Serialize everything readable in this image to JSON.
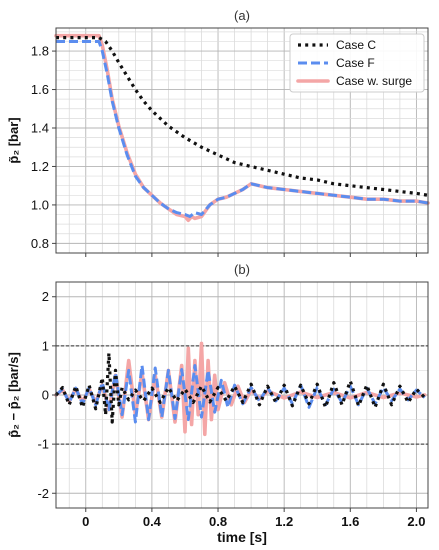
{
  "chart_data": [
    {
      "type": "line",
      "title": "(a)",
      "ylabel": "p̃₂ [bar]",
      "xlim": [
        -0.18,
        2.07
      ],
      "ylim": [
        0.75,
        1.92
      ],
      "grid": true,
      "legend_position": "top-right",
      "x_ticks": [
        0,
        0.4,
        0.8,
        1.2,
        1.6,
        2.0
      ],
      "y_ticks": [
        0.8,
        1.0,
        1.2,
        1.4,
        1.6,
        1.8
      ],
      "y_tick_labels": [
        "0.8",
        "1.0",
        "1.2",
        "1.4",
        "1.6",
        "1.8"
      ],
      "series": [
        {
          "name": "Case C",
          "color": "#111111",
          "style": "dotted",
          "x": [
            -0.18,
            0.08,
            0.12,
            0.16,
            0.2,
            0.25,
            0.3,
            0.35,
            0.4,
            0.45,
            0.5,
            0.6,
            0.7,
            0.8,
            0.9,
            1.0,
            1.1,
            1.2,
            1.3,
            1.4,
            1.5,
            1.6,
            1.7,
            1.8,
            1.9,
            2.0,
            2.07
          ],
          "y": [
            1.87,
            1.87,
            1.85,
            1.8,
            1.74,
            1.67,
            1.6,
            1.54,
            1.49,
            1.45,
            1.41,
            1.35,
            1.3,
            1.26,
            1.22,
            1.2,
            1.18,
            1.16,
            1.14,
            1.13,
            1.11,
            1.1,
            1.09,
            1.08,
            1.07,
            1.06,
            1.05
          ]
        },
        {
          "name": "Case F",
          "color": "#5b8def",
          "style": "dashed",
          "x": [
            -0.18,
            0.08,
            0.1,
            0.13,
            0.16,
            0.2,
            0.25,
            0.3,
            0.35,
            0.4,
            0.45,
            0.5,
            0.55,
            0.6,
            0.63,
            0.66,
            0.7,
            0.75,
            0.8,
            0.85,
            0.9,
            0.95,
            1.0,
            1.05,
            1.1,
            1.2,
            1.3,
            1.4,
            1.5,
            1.6,
            1.7,
            1.8,
            1.9,
            2.0,
            2.07
          ],
          "y": [
            1.85,
            1.85,
            1.8,
            1.68,
            1.54,
            1.4,
            1.26,
            1.15,
            1.09,
            1.05,
            1.01,
            0.98,
            0.96,
            0.95,
            0.94,
            0.96,
            0.95,
            1.0,
            1.03,
            1.04,
            1.06,
            1.08,
            1.11,
            1.1,
            1.09,
            1.08,
            1.07,
            1.06,
            1.05,
            1.04,
            1.03,
            1.03,
            1.02,
            1.02,
            1.01
          ]
        },
        {
          "name": "Case w. surge",
          "color": "#f4a6a6",
          "style": "solid",
          "x": [
            -0.18,
            0.08,
            0.1,
            0.13,
            0.16,
            0.2,
            0.25,
            0.3,
            0.35,
            0.4,
            0.45,
            0.5,
            0.55,
            0.6,
            0.62,
            0.64,
            0.66,
            0.7,
            0.75,
            0.8,
            0.85,
            0.9,
            0.95,
            1.0,
            1.05,
            1.1,
            1.2,
            1.3,
            1.4,
            1.5,
            1.6,
            1.7,
            1.8,
            1.9,
            2.0,
            2.07
          ],
          "y": [
            1.88,
            1.88,
            1.83,
            1.7,
            1.55,
            1.41,
            1.27,
            1.16,
            1.09,
            1.05,
            1.01,
            0.98,
            0.95,
            0.94,
            0.92,
            0.94,
            0.93,
            0.94,
            1.0,
            1.03,
            1.04,
            1.06,
            1.08,
            1.11,
            1.1,
            1.09,
            1.08,
            1.07,
            1.06,
            1.05,
            1.04,
            1.03,
            1.03,
            1.02,
            1.02,
            1.01
          ]
        }
      ]
    },
    {
      "type": "line",
      "title": "(b)",
      "xlabel": "time [s]",
      "ylabel": "ṗ̃₂ − ṗ̄₂ [bar/s]",
      "xlim": [
        -0.18,
        2.07
      ],
      "ylim": [
        -2.3,
        2.3
      ],
      "grid": true,
      "reference_lines": [
        1,
        -1
      ],
      "x_ticks": [
        0,
        0.4,
        0.8,
        1.2,
        1.6,
        2.0
      ],
      "x_tick_labels": [
        "0",
        "0.4",
        "0.8",
        "1.2",
        "1.6",
        "2.0"
      ],
      "y_ticks": [
        -2,
        -1,
        0,
        1,
        2
      ],
      "y_tick_labels": [
        "-2",
        "-1",
        "0",
        "1",
        "2"
      ],
      "series": [
        {
          "name": "Case C",
          "color": "#111111",
          "style": "dotted",
          "x": [
            -0.18,
            -0.14,
            -0.1,
            -0.06,
            -0.02,
            0.02,
            0.06,
            0.1,
            0.12,
            0.14,
            0.16,
            0.18,
            0.2,
            0.22,
            0.26,
            0.3,
            0.35,
            0.4,
            0.45,
            0.5,
            0.55,
            0.6,
            0.65,
            0.7,
            0.75,
            0.8,
            0.85,
            0.9,
            0.95,
            1.0,
            1.05,
            1.1,
            1.15,
            1.2,
            1.25,
            1.3,
            1.35,
            1.4,
            1.45,
            1.5,
            1.55,
            1.6,
            1.65,
            1.7,
            1.75,
            1.8,
            1.85,
            1.9,
            1.95,
            2.0,
            2.05
          ],
          "y": [
            0,
            0.15,
            -0.2,
            0.18,
            -0.25,
            0.2,
            -0.28,
            0.35,
            -0.4,
            0.85,
            -0.55,
            0.5,
            -0.2,
            0.15,
            -0.1,
            0.1,
            -0.12,
            0.14,
            -0.15,
            0.15,
            -0.12,
            0.12,
            -0.15,
            0.18,
            -0.14,
            0.15,
            -0.12,
            0.18,
            -0.15,
            0.22,
            -0.2,
            0.18,
            -0.15,
            0.2,
            -0.22,
            0.2,
            -0.18,
            0.22,
            -0.25,
            0.25,
            -0.2,
            0.28,
            -0.22,
            0.2,
            -0.25,
            0.22,
            -0.2,
            0.18,
            -0.15,
            0.12,
            -0.05
          ]
        },
        {
          "name": "Case F",
          "color": "#5b8def",
          "style": "dashed",
          "x": [
            -0.18,
            -0.14,
            -0.1,
            -0.06,
            -0.02,
            0.02,
            0.06,
            0.1,
            0.14,
            0.18,
            0.22,
            0.26,
            0.3,
            0.34,
            0.38,
            0.42,
            0.46,
            0.5,
            0.54,
            0.58,
            0.62,
            0.66,
            0.7,
            0.74,
            0.78,
            0.82,
            0.86,
            0.9,
            0.95,
            1.0,
            1.05,
            1.1,
            1.15,
            1.2,
            1.25,
            1.3,
            1.35,
            1.4,
            1.45,
            1.5,
            1.55,
            1.6,
            1.65,
            1.7,
            1.75,
            1.8,
            1.85,
            1.9,
            1.95,
            2.0,
            2.05
          ],
          "y": [
            0,
            0.12,
            -0.15,
            0.14,
            -0.18,
            0.15,
            -0.2,
            0.25,
            -0.3,
            0.45,
            -0.4,
            0.5,
            -0.55,
            0.6,
            -0.5,
            0.55,
            -0.45,
            0.5,
            -0.48,
            0.52,
            -0.5,
            0.6,
            -0.45,
            0.5,
            -0.35,
            0.3,
            -0.25,
            0.2,
            -0.18,
            0.15,
            -0.12,
            0.15,
            -0.12,
            0.14,
            -0.18,
            0.2,
            -0.25,
            0.15,
            -0.2,
            0.12,
            -0.15,
            0.18,
            -0.2,
            0.14,
            -0.18,
            0.15,
            -0.12,
            0.12,
            -0.1,
            0.1,
            -0.05
          ]
        },
        {
          "name": "Case w. surge",
          "color": "#f4a6a6",
          "style": "solid",
          "x": [
            -0.18,
            -0.14,
            -0.1,
            -0.06,
            -0.02,
            0.02,
            0.06,
            0.1,
            0.14,
            0.18,
            0.22,
            0.26,
            0.3,
            0.34,
            0.38,
            0.42,
            0.46,
            0.5,
            0.54,
            0.58,
            0.6,
            0.62,
            0.64,
            0.66,
            0.68,
            0.7,
            0.72,
            0.74,
            0.76,
            0.78,
            0.8,
            0.84,
            0.88,
            0.92,
            0.96,
            1.0,
            1.05,
            1.1,
            1.2,
            1.3,
            1.4,
            1.5,
            1.6,
            1.7,
            1.8,
            1.9,
            2.0,
            2.05
          ],
          "y": [
            0,
            0.1,
            -0.12,
            0.12,
            -0.14,
            0.12,
            -0.15,
            0.2,
            -0.3,
            0.4,
            -0.45,
            0.7,
            -0.4,
            0.45,
            -0.5,
            0.4,
            -0.45,
            0.5,
            -0.55,
            0.6,
            -0.75,
            0.95,
            -0.6,
            0.7,
            -0.4,
            1.05,
            -0.8,
            0.7,
            -0.5,
            0.4,
            -0.3,
            0.25,
            -0.2,
            0.18,
            -0.15,
            0.1,
            -0.08,
            0.08,
            -0.06,
            0.06,
            -0.05,
            0.05,
            -0.06,
            0.05,
            -0.05,
            0.04,
            -0.04,
            0
          ]
        }
      ]
    }
  ]
}
